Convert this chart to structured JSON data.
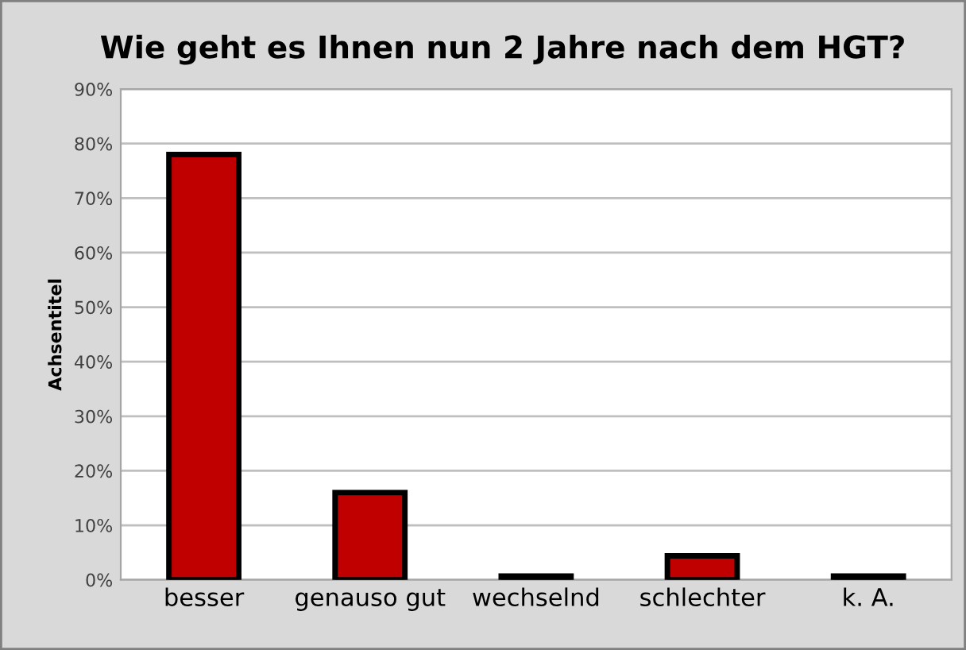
{
  "chart_data": {
    "type": "bar",
    "title": "Wie geht es Ihnen nun 2 Jahre nach dem HGT?",
    "ylabel": "Achsentitel",
    "categories": [
      "besser",
      "genauso gut",
      "wechselnd",
      "schlechter",
      "k. A."
    ],
    "values": [
      78,
      16,
      0.7,
      4.4,
      0.7
    ],
    "color": "#c00000",
    "ylim": [
      0,
      90
    ],
    "yticks": [
      {
        "value": 0,
        "label": "0%"
      },
      {
        "value": 10,
        "label": "10%"
      },
      {
        "value": 20,
        "label": "20%"
      },
      {
        "value": 30,
        "label": "30%"
      },
      {
        "value": 40,
        "label": "40%"
      },
      {
        "value": 50,
        "label": "50%"
      },
      {
        "value": 60,
        "label": "60%"
      },
      {
        "value": 70,
        "label": "70%"
      },
      {
        "value": 80,
        "label": "80%"
      },
      {
        "value": 90,
        "label": "90%"
      }
    ],
    "grid": "y",
    "legend": false
  }
}
